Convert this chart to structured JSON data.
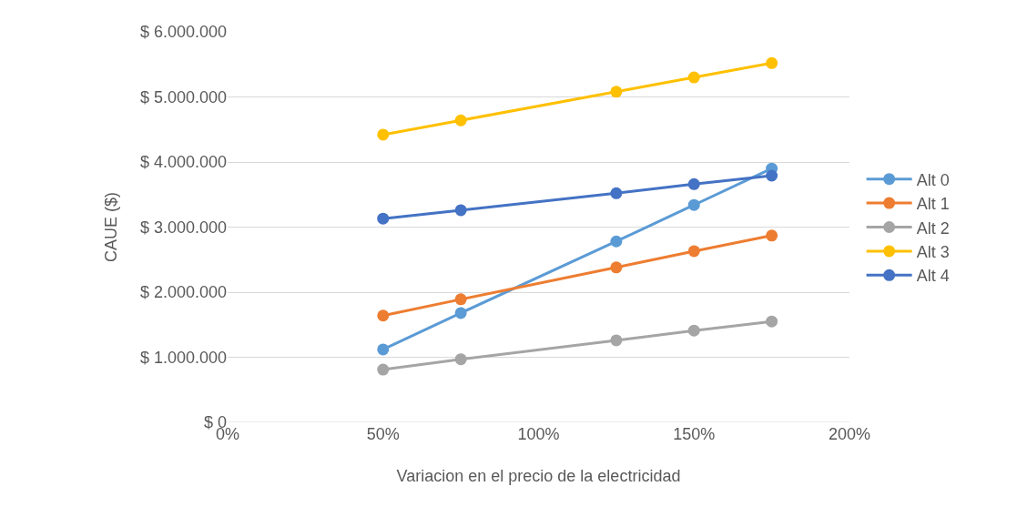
{
  "chart_data": {
    "type": "line",
    "xlabel": "Variacion en el precio de la electricidad",
    "ylabel": "CAUE ($)",
    "x": [
      50,
      75,
      125,
      150,
      175
    ],
    "series": [
      {
        "name": "Alt 0",
        "color": "#5b9bd5",
        "values": [
          1120000,
          1680000,
          2780000,
          3340000,
          3900000
        ]
      },
      {
        "name": "Alt 1",
        "color": "#ed7d31",
        "values": [
          1640000,
          1890000,
          2380000,
          2630000,
          2870000
        ]
      },
      {
        "name": "Alt 2",
        "color": "#a5a5a5",
        "values": [
          810000,
          970000,
          1260000,
          1410000,
          1550000
        ]
      },
      {
        "name": "Alt 3",
        "color": "#ffc000",
        "values": [
          4420000,
          4640000,
          5080000,
          5300000,
          5520000
        ]
      },
      {
        "name": "Alt 4",
        "color": "#4472c4",
        "values": [
          3130000,
          3260000,
          3520000,
          3660000,
          3790000
        ]
      }
    ],
    "xlim": [
      0,
      200
    ],
    "xticks": [
      {
        "value": 0,
        "label": "0%"
      },
      {
        "value": 50,
        "label": "50%"
      },
      {
        "value": 100,
        "label": "100%"
      },
      {
        "value": 150,
        "label": "150%"
      },
      {
        "value": 200,
        "label": "200%"
      }
    ],
    "ylim": [
      0,
      6000000
    ],
    "yticks": [
      {
        "value": 0,
        "label": "$ 0"
      },
      {
        "value": 1000000,
        "label": "$ 1.000.000"
      },
      {
        "value": 2000000,
        "label": "$ 2.000.000"
      },
      {
        "value": 3000000,
        "label": "$ 3.000.000"
      },
      {
        "value": 4000000,
        "label": "$ 4.000.000"
      },
      {
        "value": 5000000,
        "label": "$ 5.000.000"
      },
      {
        "value": 6000000,
        "label": "$ 6.000.000"
      }
    ],
    "grid": "y",
    "legend": "right",
    "marker": "circle",
    "line_style": "solid"
  }
}
